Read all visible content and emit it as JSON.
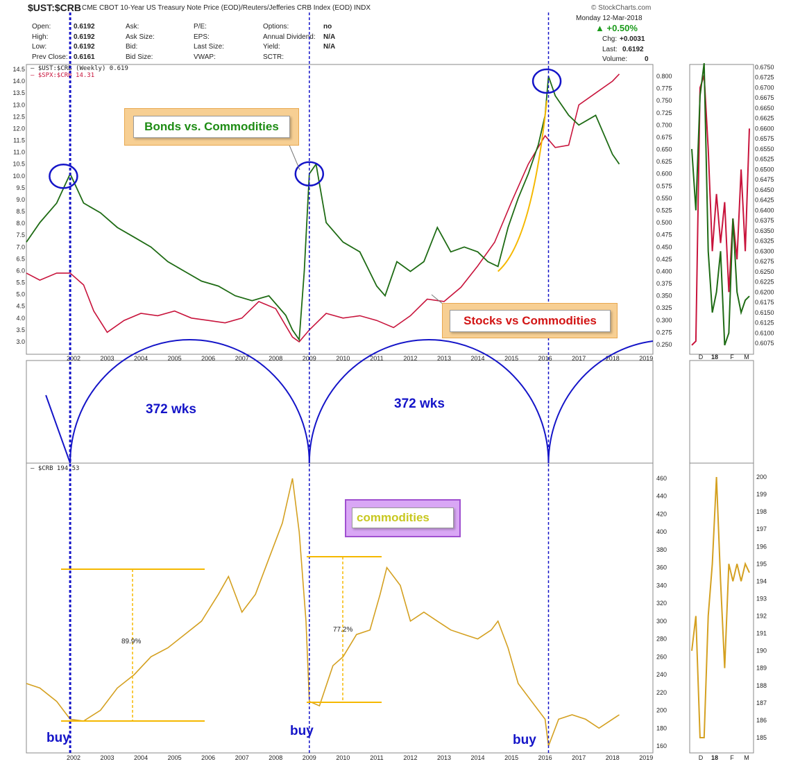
{
  "header": {
    "symbol": "$UST:$CRB",
    "description": "CME CBOT 10-Year US Treasury Note Price (EOD)/Reuters/Jefferies CRB Index (EOD)  INDX",
    "brand": "© StockCharts.com",
    "date": "Monday  12-Mar-2018",
    "change_pct": "▲ +0.50%",
    "rows": [
      {
        "l1": "Open:",
        "v1": "0.6192",
        "l2": "Ask:",
        "v2": "",
        "l3": "P/E:",
        "v3": "",
        "l4": "Options:",
        "v4": "no"
      },
      {
        "l1": "High:",
        "v1": "0.6192",
        "l2": "Ask Size:",
        "v2": "",
        "l3": "EPS:",
        "v3": "",
        "l4": "Annual Dividend:",
        "v4": "N/A"
      },
      {
        "l1": "Low:",
        "v1": "0.6192",
        "l2": "Bid:",
        "v2": "",
        "l3": "Last Size:",
        "v3": "",
        "l4": "Yield:",
        "v4": "N/A"
      },
      {
        "l1": "Prev Close:",
        "v1": "0.6161",
        "l2": "Bid Size:",
        "v2": "",
        "l3": "VWAP:",
        "v3": "",
        "l4": "SCTR:",
        "v4": ""
      }
    ],
    "chg_label": "Chg:",
    "chg_value": "+0.0031",
    "last_label": "Last:",
    "last_value": "0.6192",
    "volume_label": "Volume:",
    "volume_value": "0"
  },
  "annotations": {
    "bonds_label": "Bonds vs. Commodities",
    "stocks_label": "Stocks vs Commodities",
    "commodities_label": "commodities",
    "cycle1": "372 wks",
    "cycle2": "372 wks",
    "buy1": "buy",
    "buy2": "buy",
    "buy3": "buy",
    "pct1": "89.9%",
    "pct2": "77.2%"
  },
  "colors": {
    "ust_crb": "#1e6b14",
    "spx_crb": "#c8143c",
    "crb": "#d4a020",
    "cycle": "#1414c8",
    "measure": "#f5b800",
    "bonds_text": "#1e8c14",
    "stocks_text": "#d21414",
    "commod_text": "#c8c820"
  },
  "chart_data": [
    {
      "type": "line",
      "title": "$UST:$CRB",
      "x_ticks": [
        "2002",
        "2003",
        "2004",
        "2005",
        "2006",
        "2007",
        "2008",
        "2009",
        "2010",
        "2011",
        "2012",
        "2013",
        "2014",
        "2015",
        "2016",
        "2017",
        "2018",
        "2019"
      ],
      "series": [
        {
          "name": "$UST:$CRB (Weekly) 0.619",
          "axis": "right",
          "x": [
            2000.6,
            2001.0,
            2001.5,
            2001.9,
            2002.3,
            2002.8,
            2003.3,
            2003.8,
            2004.3,
            2004.8,
            2005.3,
            2005.8,
            2006.3,
            2006.8,
            2007.3,
            2007.8,
            2008.3,
            2008.5,
            2008.7,
            2008.85,
            2009.0,
            2009.2,
            2009.5,
            2010.0,
            2010.5,
            2011.0,
            2011.25,
            2011.6,
            2012.0,
            2012.4,
            2012.8,
            2013.2,
            2013.6,
            2014.0,
            2014.3,
            2014.6,
            2014.9,
            2015.2,
            2015.5,
            2015.8,
            2016.0,
            2016.1,
            2016.3,
            2016.7,
            2017.0,
            2017.5,
            2018.0,
            2018.2
          ],
          "y": [
            0.46,
            0.5,
            0.54,
            0.6,
            0.54,
            0.52,
            0.49,
            0.47,
            0.45,
            0.42,
            0.4,
            0.38,
            0.37,
            0.35,
            0.34,
            0.35,
            0.31,
            0.28,
            0.26,
            0.4,
            0.6,
            0.62,
            0.5,
            0.46,
            0.44,
            0.37,
            0.35,
            0.42,
            0.4,
            0.42,
            0.49,
            0.44,
            0.45,
            0.44,
            0.42,
            0.41,
            0.49,
            0.55,
            0.6,
            0.66,
            0.72,
            0.8,
            0.76,
            0.72,
            0.7,
            0.72,
            0.64,
            0.62
          ]
        },
        {
          "name": "$SPX:$CRB 14.31",
          "axis": "left",
          "x": [
            2000.6,
            2001.0,
            2001.5,
            2001.9,
            2002.3,
            2002.6,
            2003.0,
            2003.5,
            2004.0,
            2004.5,
            2005.0,
            2005.5,
            2006.0,
            2006.5,
            2007.0,
            2007.5,
            2008.0,
            2008.5,
            2008.7,
            2009.0,
            2009.5,
            2010.0,
            2010.5,
            2011.0,
            2011.5,
            2012.0,
            2012.5,
            2013.0,
            2013.5,
            2014.0,
            2014.5,
            2015.0,
            2015.5,
            2016.0,
            2016.3,
            2016.7,
            2017.0,
            2017.5,
            2018.0,
            2018.2
          ],
          "y": [
            5.9,
            5.6,
            5.9,
            5.9,
            5.4,
            4.3,
            3.4,
            3.9,
            4.2,
            4.1,
            4.3,
            4.0,
            3.9,
            3.8,
            4.0,
            4.7,
            4.4,
            3.2,
            3.0,
            3.5,
            4.2,
            4.0,
            4.1,
            3.9,
            3.6,
            4.1,
            4.8,
            4.7,
            5.3,
            6.2,
            7.2,
            8.9,
            10.5,
            11.7,
            11.2,
            11.3,
            13.0,
            13.5,
            14.0,
            14.3
          ]
        },
        {
          "name": "$CRB 194.53",
          "axis": "crb",
          "x": [
            2000.6,
            2001.0,
            2001.5,
            2001.9,
            2002.3,
            2002.8,
            2003.3,
            2003.8,
            2004.3,
            2004.8,
            2005.3,
            2005.8,
            2006.3,
            2006.6,
            2007.0,
            2007.4,
            2007.8,
            2008.2,
            2008.5,
            2008.7,
            2008.9,
            2009.0,
            2009.3,
            2009.7,
            2010.0,
            2010.4,
            2010.8,
            2011.1,
            2011.3,
            2011.7,
            2012.0,
            2012.4,
            2012.8,
            2013.2,
            2013.6,
            2014.0,
            2014.4,
            2014.6,
            2014.9,
            2015.2,
            2015.6,
            2016.0,
            2016.1,
            2016.4,
            2016.8,
            2017.2,
            2017.6,
            2018.0,
            2018.2
          ],
          "y": [
            230,
            225,
            210,
            190,
            188,
            200,
            225,
            240,
            260,
            270,
            285,
            300,
            330,
            350,
            310,
            330,
            370,
            410,
            460,
            400,
            300,
            210,
            205,
            250,
            260,
            285,
            290,
            330,
            360,
            340,
            300,
            310,
            300,
            290,
            285,
            280,
            290,
            300,
            270,
            230,
            210,
            190,
            160,
            190,
            195,
            190,
            180,
            190,
            195
          ]
        }
      ],
      "left_axis": {
        "ticks": [
          3.0,
          3.5,
          4.0,
          4.5,
          5.0,
          5.5,
          6.0,
          6.5,
          7.0,
          7.5,
          8.0,
          8.5,
          9.0,
          9.5,
          10.0,
          10.5,
          11.0,
          11.5,
          12.0,
          12.5,
          13.0,
          13.5,
          14.0,
          14.5
        ]
      },
      "right_axis": {
        "ticks": [
          0.25,
          0.275,
          0.3,
          0.325,
          0.35,
          0.375,
          0.4,
          0.425,
          0.45,
          0.475,
          0.5,
          0.525,
          0.55,
          0.575,
          0.6,
          0.625,
          0.65,
          0.675,
          0.7,
          0.725,
          0.75,
          0.775,
          0.8
        ]
      },
      "crb_axis": {
        "ticks": [
          160,
          180,
          200,
          220,
          240,
          260,
          280,
          300,
          320,
          340,
          360,
          380,
          400,
          420,
          440,
          460
        ]
      },
      "cycle_length": "372 wks",
      "cycle_troughs": [
        2001.9,
        2009.0,
        2016.1
      ]
    },
    {
      "type": "line",
      "title": "zoom panel",
      "x_ticks": [
        "D",
        "18",
        "F",
        "M"
      ],
      "series": [
        {
          "name": "$UST:$CRB",
          "x": [
            0,
            1,
            2,
            3,
            4,
            5,
            6,
            7,
            8,
            9,
            10,
            11,
            12,
            13,
            14
          ],
          "y": [
            0.655,
            0.64,
            0.668,
            0.676,
            0.63,
            0.615,
            0.62,
            0.63,
            0.607,
            0.61,
            0.638,
            0.62,
            0.615,
            0.618,
            0.619
          ]
        },
        {
          "name": "$SPX:$CRB",
          "x": [
            0,
            1,
            2,
            3,
            4,
            5,
            6,
            7,
            8,
            9,
            10,
            11,
            12,
            13,
            14
          ],
          "y": [
            0.607,
            0.608,
            0.67,
            0.673,
            0.655,
            0.63,
            0.644,
            0.632,
            0.642,
            0.62,
            0.638,
            0.628,
            0.65,
            0.63,
            0.66
          ]
        },
        {
          "name": "$CRB",
          "axis_ticks": [
            185,
            186,
            187,
            188,
            189,
            190,
            191,
            192,
            193,
            194,
            195,
            196,
            197,
            198,
            199,
            200
          ],
          "x": [
            0,
            1,
            2,
            3,
            4,
            5,
            6,
            7,
            8,
            9,
            10,
            11,
            12,
            13,
            14
          ],
          "y": [
            190,
            192,
            185,
            185,
            192,
            195,
            200,
            194,
            189,
            195,
            194,
            195,
            194,
            195,
            194.5
          ]
        }
      ],
      "ust_ticks": [
        0.6075,
        0.61,
        0.6125,
        0.615,
        0.6175,
        0.62,
        0.6225,
        0.625,
        0.6275,
        0.63,
        0.6325,
        0.635,
        0.6375,
        0.64,
        0.6425,
        0.645,
        0.6475,
        0.65,
        0.6525,
        0.655,
        0.6575,
        0.66,
        0.6625,
        0.665,
        0.6675,
        0.67,
        0.6725,
        0.675
      ]
    }
  ]
}
